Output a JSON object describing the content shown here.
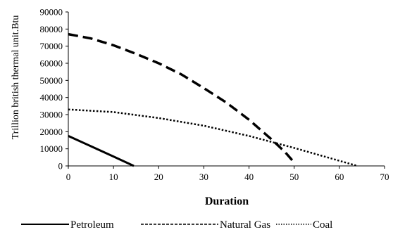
{
  "chart_data": {
    "type": "line",
    "title": "",
    "xlabel": "Duration",
    "ylabel": "Trillion british thermal unit.Btu",
    "xlim": [
      0,
      70
    ],
    "ylim": [
      0,
      90000
    ],
    "x_ticks": [
      0,
      10,
      20,
      30,
      40,
      50,
      60,
      70
    ],
    "y_ticks": [
      0,
      10000,
      20000,
      30000,
      40000,
      50000,
      60000,
      70000,
      80000,
      90000
    ],
    "grid": false,
    "legend_position": "bottom",
    "series": [
      {
        "name": "Petroleum",
        "style": "solid",
        "color": "#000000",
        "points": [
          [
            0,
            17500
          ],
          [
            5,
            11500
          ],
          [
            10,
            5500
          ],
          [
            14.5,
            0
          ]
        ]
      },
      {
        "name": "Natural Gas",
        "style": "dashed",
        "color": "#000000",
        "points": [
          [
            0,
            77000
          ],
          [
            5,
            74500
          ],
          [
            10,
            70500
          ],
          [
            15,
            65500
          ],
          [
            20,
            60000
          ],
          [
            25,
            53500
          ],
          [
            30,
            45500
          ],
          [
            35,
            37000
          ],
          [
            40,
            27000
          ],
          [
            45,
            15500
          ],
          [
            48,
            8000
          ],
          [
            50,
            2000
          ]
        ]
      },
      {
        "name": "Coal",
        "style": "dotted",
        "color": "#000000",
        "points": [
          [
            0,
            33000
          ],
          [
            10,
            31500
          ],
          [
            20,
            28000
          ],
          [
            30,
            23500
          ],
          [
            40,
            17500
          ],
          [
            50,
            10500
          ],
          [
            60,
            3000
          ],
          [
            64,
            0
          ]
        ]
      }
    ]
  }
}
